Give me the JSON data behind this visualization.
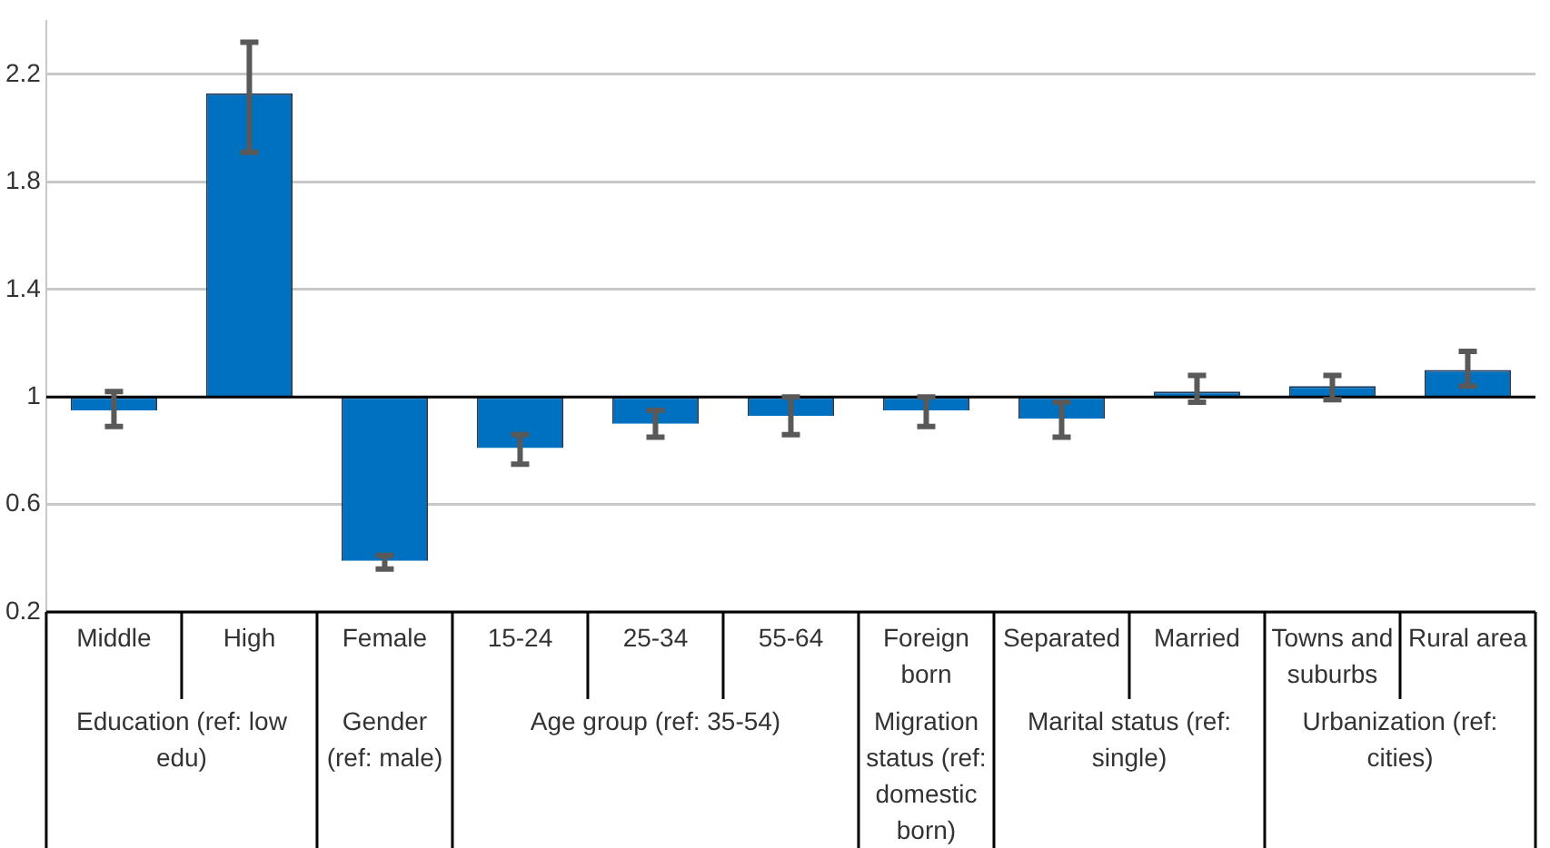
{
  "chart_data": {
    "type": "bar",
    "categories": [
      "Middle",
      "High",
      "Female",
      "15-24",
      "25-34",
      "55-64",
      "Foreign born",
      "Separated",
      "Married",
      "Towns and suburbs",
      "Rural area"
    ],
    "base": [
      1,
      1,
      1,
      1,
      1,
      1,
      1,
      1,
      1,
      1,
      1
    ],
    "values": [
      -0.05,
      1.13,
      -0.61,
      -0.19,
      -0.1,
      -0.07,
      -0.05,
      -0.08,
      0.02,
      0.04,
      0.1
    ],
    "errors": [
      [
        0.89,
        1.02
      ],
      [
        1.91,
        2.32
      ],
      [
        0.36,
        0.41
      ],
      [
        0.75,
        0.86
      ],
      [
        0.85,
        0.95
      ],
      [
        0.86,
        1.0
      ],
      [
        0.89,
        1.0
      ],
      [
        0.85,
        0.98
      ],
      [
        0.98,
        1.08
      ],
      [
        0.99,
        1.08
      ],
      [
        1.04,
        1.17
      ]
    ],
    "color": "#0070c0",
    "ylim": [
      0.2,
      2.4
    ],
    "yticks": [
      0.2,
      0.6,
      1,
      1.4,
      1.8,
      2.2
    ],
    "grid": "y",
    "legend": false,
    "ref_lines": [
      {
        "axis": "y",
        "value": 1,
        "color": "#000000"
      }
    ],
    "annotations": [
      "Education (ref: low edu)",
      "Gender (ref: male)",
      "Age group (ref: 35-54)",
      "Migration status (ref: domestic born)",
      "Marital status (ref: single)",
      "Urbanization (ref: cities)"
    ]
  }
}
